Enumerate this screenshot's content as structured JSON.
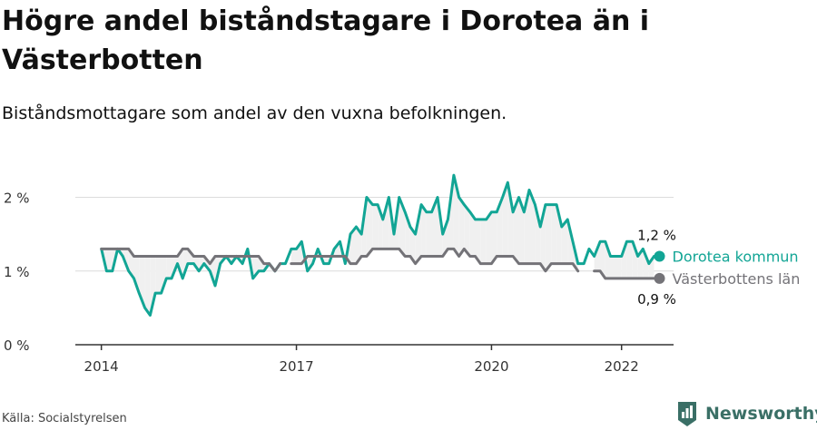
{
  "header": {
    "title": "Högre andel biståndstagare i Dorotea än i Västerbotten",
    "subtitle": "Biståndsmottagare som andel av den vuxna befolkningen."
  },
  "footer": {
    "source": "Källa: Socialstyrelsen",
    "brand": "Newsworthy"
  },
  "colors": {
    "dorotea": "#12a595",
    "vasterbotten": "#747378",
    "shade": "#f0f0f0",
    "brand": "#3a6f66"
  },
  "chart_data": {
    "type": "line",
    "x_unit": "year",
    "x_ticks": [
      2014,
      2017,
      2020,
      2022
    ],
    "x_tick_labels": [
      "2014",
      "2017",
      "2020",
      "2022"
    ],
    "xlim": [
      2013.6,
      2022.8
    ],
    "y_ticks": [
      0,
      1,
      2
    ],
    "y_tick_labels": [
      "0 %",
      "1 %",
      "2 %"
    ],
    "ylim": [
      0,
      2.4
    ],
    "grid": true,
    "shaded_between_series": true,
    "series": [
      {
        "name": "Dorotea kommun",
        "color": "#12a595",
        "end_label": "1,2 %",
        "values": [
          [
            2014.0,
            1.3
          ],
          [
            2014.08,
            1.0
          ],
          [
            2014.17,
            1.0
          ],
          [
            2014.25,
            1.3
          ],
          [
            2014.33,
            1.2
          ],
          [
            2014.42,
            1.0
          ],
          [
            2014.5,
            0.9
          ],
          [
            2014.58,
            0.7
          ],
          [
            2014.67,
            0.5
          ],
          [
            2014.75,
            0.4
          ],
          [
            2014.83,
            0.7
          ],
          [
            2014.92,
            0.7
          ],
          [
            2015.0,
            0.9
          ],
          [
            2015.08,
            0.9
          ],
          [
            2015.17,
            1.1
          ],
          [
            2015.25,
            0.9
          ],
          [
            2015.33,
            1.1
          ],
          [
            2015.42,
            1.1
          ],
          [
            2015.5,
            1.0
          ],
          [
            2015.58,
            1.1
          ],
          [
            2015.67,
            1.0
          ],
          [
            2015.75,
            0.8
          ],
          [
            2015.83,
            1.1
          ],
          [
            2015.92,
            1.2
          ],
          [
            2016.0,
            1.1
          ],
          [
            2016.08,
            1.2
          ],
          [
            2016.17,
            1.1
          ],
          [
            2016.25,
            1.3
          ],
          [
            2016.33,
            0.9
          ],
          [
            2016.42,
            1.0
          ],
          [
            2016.5,
            1.0
          ],
          [
            2016.58,
            1.1
          ],
          [
            2016.67,
            1.0
          ],
          [
            2016.75,
            1.1
          ],
          [
            2016.83,
            1.1
          ],
          [
            2016.92,
            1.3
          ],
          [
            2017.0,
            1.3
          ],
          [
            2017.08,
            1.4
          ],
          [
            2017.17,
            1.0
          ],
          [
            2017.25,
            1.1
          ],
          [
            2017.33,
            1.3
          ],
          [
            2017.42,
            1.1
          ],
          [
            2017.5,
            1.1
          ],
          [
            2017.58,
            1.3
          ],
          [
            2017.67,
            1.4
          ],
          [
            2017.75,
            1.1
          ],
          [
            2017.83,
            1.5
          ],
          [
            2017.92,
            1.6
          ],
          [
            2018.0,
            1.5
          ],
          [
            2018.08,
            2.0
          ],
          [
            2018.17,
            1.9
          ],
          [
            2018.25,
            1.9
          ],
          [
            2018.33,
            1.7
          ],
          [
            2018.42,
            2.0
          ],
          [
            2018.5,
            1.5
          ],
          [
            2018.58,
            2.0
          ],
          [
            2018.67,
            1.8
          ],
          [
            2018.75,
            1.6
          ],
          [
            2018.83,
            1.5
          ],
          [
            2018.92,
            1.9
          ],
          [
            2019.0,
            1.8
          ],
          [
            2019.08,
            1.8
          ],
          [
            2019.17,
            2.0
          ],
          [
            2019.25,
            1.5
          ],
          [
            2019.33,
            1.7
          ],
          [
            2019.42,
            2.3
          ],
          [
            2019.5,
            2.0
          ],
          [
            2019.58,
            1.9
          ],
          [
            2019.67,
            1.8
          ],
          [
            2019.75,
            1.7
          ],
          [
            2019.83,
            1.7
          ],
          [
            2019.92,
            1.7
          ],
          [
            2020.0,
            1.8
          ],
          [
            2020.08,
            1.8
          ],
          [
            2020.17,
            2.0
          ],
          [
            2020.25,
            2.2
          ],
          [
            2020.33,
            1.8
          ],
          [
            2020.42,
            2.0
          ],
          [
            2020.5,
            1.8
          ],
          [
            2020.58,
            2.1
          ],
          [
            2020.67,
            1.9
          ],
          [
            2020.75,
            1.6
          ],
          [
            2020.83,
            1.9
          ],
          [
            2020.92,
            1.9
          ],
          [
            2021.0,
            1.9
          ],
          [
            2021.08,
            1.6
          ],
          [
            2021.17,
            1.7
          ],
          [
            2021.25,
            1.4
          ],
          [
            2021.33,
            1.1
          ],
          [
            2021.42,
            1.1
          ],
          [
            2021.5,
            1.3
          ],
          [
            2021.58,
            1.2
          ],
          [
            2021.67,
            1.4
          ],
          [
            2021.75,
            1.4
          ],
          [
            2021.83,
            1.2
          ],
          [
            2021.92,
            1.2
          ],
          [
            2022.0,
            1.2
          ],
          [
            2022.08,
            1.4
          ],
          [
            2022.17,
            1.4
          ],
          [
            2022.25,
            1.2
          ],
          [
            2022.33,
            1.3
          ],
          [
            2022.42,
            1.1
          ],
          [
            2022.5,
            1.2
          ]
        ]
      },
      {
        "name": "Västerbottens län",
        "color": "#747378",
        "end_label": "0,9 %",
        "values": [
          [
            2014.0,
            1.3
          ],
          [
            2014.08,
            1.3
          ],
          [
            2014.17,
            1.3
          ],
          [
            2014.25,
            1.3
          ],
          [
            2014.33,
            1.3
          ],
          [
            2014.42,
            1.3
          ],
          [
            2014.5,
            1.2
          ],
          [
            2014.58,
            1.2
          ],
          [
            2014.67,
            1.2
          ],
          [
            2014.75,
            1.2
          ],
          [
            2014.83,
            1.2
          ],
          [
            2014.92,
            1.2
          ],
          [
            2015.0,
            1.2
          ],
          [
            2015.08,
            1.2
          ],
          [
            2015.17,
            1.2
          ],
          [
            2015.25,
            1.3
          ],
          [
            2015.33,
            1.3
          ],
          [
            2015.42,
            1.2
          ],
          [
            2015.5,
            1.2
          ],
          [
            2015.58,
            1.2
          ],
          [
            2015.67,
            1.1
          ],
          [
            2015.75,
            1.2
          ],
          [
            2015.83,
            1.2
          ],
          [
            2015.92,
            1.2
          ],
          [
            2016.0,
            1.2
          ],
          [
            2016.08,
            1.2
          ],
          [
            2016.17,
            1.2
          ],
          [
            2016.25,
            1.2
          ],
          [
            2016.33,
            1.2
          ],
          [
            2016.42,
            1.2
          ],
          [
            2016.5,
            1.1
          ],
          [
            2016.58,
            1.1
          ],
          [
            2016.67,
            1.0
          ],
          [
            2016.75,
            1.1
          ],
          [
            2016.83,
            null
          ],
          [
            2016.92,
            1.1
          ],
          [
            2017.0,
            1.1
          ],
          [
            2017.08,
            1.1
          ],
          [
            2017.17,
            1.2
          ],
          [
            2017.25,
            1.2
          ],
          [
            2017.33,
            1.2
          ],
          [
            2017.42,
            1.2
          ],
          [
            2017.5,
            1.2
          ],
          [
            2017.58,
            1.2
          ],
          [
            2017.67,
            1.2
          ],
          [
            2017.75,
            1.2
          ],
          [
            2017.83,
            1.1
          ],
          [
            2017.92,
            1.1
          ],
          [
            2018.0,
            1.2
          ],
          [
            2018.08,
            1.2
          ],
          [
            2018.17,
            1.3
          ],
          [
            2018.25,
            1.3
          ],
          [
            2018.33,
            1.3
          ],
          [
            2018.42,
            1.3
          ],
          [
            2018.5,
            1.3
          ],
          [
            2018.58,
            1.3
          ],
          [
            2018.67,
            1.2
          ],
          [
            2018.75,
            1.2
          ],
          [
            2018.83,
            1.1
          ],
          [
            2018.92,
            1.2
          ],
          [
            2019.0,
            1.2
          ],
          [
            2019.08,
            1.2
          ],
          [
            2019.17,
            1.2
          ],
          [
            2019.25,
            1.2
          ],
          [
            2019.33,
            1.3
          ],
          [
            2019.42,
            1.3
          ],
          [
            2019.5,
            1.2
          ],
          [
            2019.58,
            1.3
          ],
          [
            2019.67,
            1.2
          ],
          [
            2019.75,
            1.2
          ],
          [
            2019.83,
            1.1
          ],
          [
            2019.92,
            1.1
          ],
          [
            2020.0,
            1.1
          ],
          [
            2020.08,
            1.2
          ],
          [
            2020.17,
            1.2
          ],
          [
            2020.25,
            1.2
          ],
          [
            2020.33,
            1.2
          ],
          [
            2020.42,
            1.1
          ],
          [
            2020.5,
            1.1
          ],
          [
            2020.58,
            1.1
          ],
          [
            2020.67,
            1.1
          ],
          [
            2020.75,
            1.1
          ],
          [
            2020.83,
            1.0
          ],
          [
            2020.92,
            1.1
          ],
          [
            2021.0,
            1.1
          ],
          [
            2021.08,
            1.1
          ],
          [
            2021.17,
            1.1
          ],
          [
            2021.25,
            1.1
          ],
          [
            2021.33,
            1.0
          ],
          [
            2021.42,
            null
          ],
          [
            2021.5,
            null
          ],
          [
            2021.58,
            1.0
          ],
          [
            2021.67,
            1.0
          ],
          [
            2021.75,
            0.9
          ],
          [
            2021.83,
            0.9
          ],
          [
            2021.92,
            0.9
          ],
          [
            2022.0,
            0.9
          ],
          [
            2022.08,
            0.9
          ],
          [
            2022.17,
            0.9
          ],
          [
            2022.25,
            0.9
          ],
          [
            2022.33,
            0.9
          ],
          [
            2022.42,
            0.9
          ],
          [
            2022.5,
            0.9
          ]
        ]
      }
    ]
  }
}
